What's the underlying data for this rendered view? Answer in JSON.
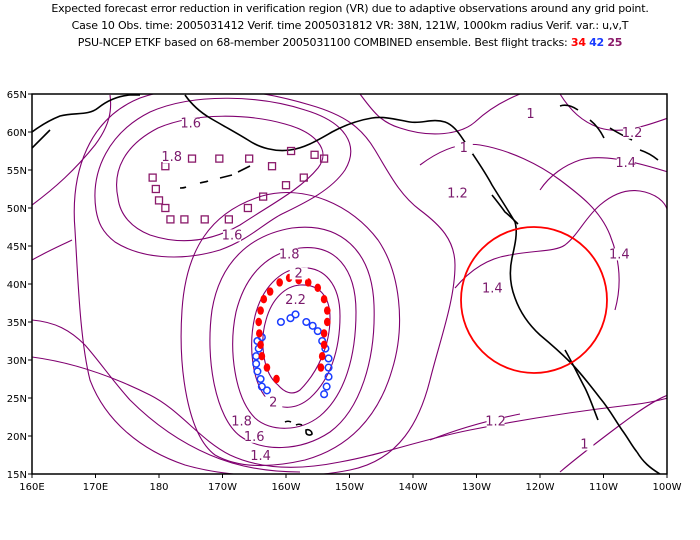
{
  "header": {
    "line1": "Expected forecast error reduction in verification region (VR) due to adaptive observations around any grid point.",
    "line2": "Case 10  Obs. time: 2005031412  Verif. time 2005031812  VR: 38N, 121W, 1000km radius  Verif. var.: u,v,T",
    "line3_prefix": "PSU-NCEP ETKF based on 68-member 2005031100 COMBINED ensemble.  Best flight tracks:",
    "track_red": "34",
    "track_blue": "42",
    "track_purple": "25"
  },
  "colors": {
    "contour": "#800070",
    "coast": "#000000",
    "red": "#ff0000",
    "blue": "#1a3cff",
    "purple": "#8a1a6a"
  },
  "axes": {
    "x_ticks": [
      "160E",
      "170E",
      "180",
      "170W",
      "160W",
      "150W",
      "140W",
      "130W",
      "120W",
      "110W",
      "100W"
    ],
    "y_ticks": [
      "15N",
      "20N",
      "25N",
      "30N",
      "35N",
      "40N",
      "45N",
      "50N",
      "55N",
      "60N",
      "65N"
    ],
    "lon_range": [
      160,
      260
    ],
    "lat_range": [
      15,
      65
    ]
  },
  "contour_labels": [
    {
      "text": "1.6",
      "lon": -175,
      "lat": 60.7
    },
    {
      "text": "1.6",
      "lon": -168.5,
      "lat": 46
    },
    {
      "text": "1.8",
      "lon": -159.5,
      "lat": 43.5
    },
    {
      "text": "2",
      "lon": -158,
      "lat": 41
    },
    {
      "text": "2.2",
      "lon": -158.5,
      "lat": 37.5
    },
    {
      "text": "2",
      "lon": -162,
      "lat": 24
    },
    {
      "text": "1.8",
      "lon": -167,
      "lat": 21.5
    },
    {
      "text": "1.6",
      "lon": -165,
      "lat": 19.5
    },
    {
      "text": "1.4",
      "lon": -164,
      "lat": 17
    },
    {
      "text": "1.2",
      "lon": -133,
      "lat": 51.5
    },
    {
      "text": "1.4",
      "lon": -127.5,
      "lat": 39
    },
    {
      "text": "1.2",
      "lon": -127,
      "lat": 21.5
    },
    {
      "text": "1",
      "lon": -132,
      "lat": 57.5
    },
    {
      "text": "1",
      "lon": -121.5,
      "lat": 62
    },
    {
      "text": "1.2",
      "lon": -105.5,
      "lat": 59.5
    },
    {
      "text": "1.4",
      "lon": -106.5,
      "lat": 55.5
    },
    {
      "text": "1.4",
      "lon": -107.5,
      "lat": 43.5
    },
    {
      "text": "1",
      "lon": -113,
      "lat": 18.5
    },
    {
      "text": "1.8",
      "lon": -178,
      "lat": 56.3
    }
  ],
  "verification_region": {
    "center_lon": -121,
    "center_lat": 38,
    "radius_km": 1000
  },
  "tracks": {
    "red": [
      [
        -162.5,
        39
      ],
      [
        -161,
        40.2
      ],
      [
        -159.5,
        40.8
      ],
      [
        -158,
        40.5
      ],
      [
        -156.5,
        40.2
      ],
      [
        -155,
        39.5
      ],
      [
        -154,
        38
      ],
      [
        -153.5,
        36.5
      ],
      [
        -153.5,
        35
      ],
      [
        -154,
        33.5
      ],
      [
        -154,
        32
      ],
      [
        -154.3,
        30.5
      ],
      [
        -154.5,
        29
      ],
      [
        -163.5,
        38
      ],
      [
        -164,
        36.5
      ],
      [
        -164.3,
        35
      ],
      [
        -164.2,
        33.5
      ],
      [
        -164,
        32
      ],
      [
        -163.8,
        30.5
      ],
      [
        -163,
        29
      ],
      [
        -161.5,
        27.5
      ]
    ],
    "blue": [
      [
        -160.8,
        35
      ],
      [
        -159.3,
        35.5
      ],
      [
        -158.5,
        36
      ],
      [
        -156.8,
        35
      ],
      [
        -155.8,
        34.5
      ],
      [
        -155,
        33.8
      ],
      [
        -154.3,
        32.5
      ],
      [
        -153.8,
        31.5
      ],
      [
        -153.3,
        30.2
      ],
      [
        -153.3,
        29
      ],
      [
        -153.3,
        27.8
      ],
      [
        -153.6,
        26.5
      ],
      [
        -154,
        25.5
      ],
      [
        -163.8,
        33
      ],
      [
        -164.5,
        32.5
      ],
      [
        -164.3,
        31.5
      ],
      [
        -164.7,
        30.5
      ],
      [
        -164.7,
        29.5
      ],
      [
        -164.5,
        28.5
      ],
      [
        -164,
        27.5
      ],
      [
        -163.8,
        26.5
      ],
      [
        -163,
        26
      ]
    ]
  },
  "purple_track": [
    [
      -179,
      55.5
    ],
    [
      -178,
      56.5
    ],
    [
      -174.8,
      56.5
    ],
    [
      -170.5,
      56.5
    ],
    [
      -165.8,
      56.5
    ],
    [
      -162.2,
      55.5
    ],
    [
      -159.2,
      57.5
    ],
    [
      -155.5,
      57
    ],
    [
      -154,
      56.5
    ],
    [
      -157.2,
      54
    ],
    [
      -160,
      53
    ],
    [
      -163.6,
      51.5
    ],
    [
      -166,
      50
    ],
    [
      -169,
      48.5
    ],
    [
      -172.8,
      48.5
    ],
    [
      -176,
      48.5
    ],
    [
      -178.2,
      48.5
    ],
    [
      -179,
      50
    ],
    [
      -180,
      51
    ],
    [
      -180.5,
      52.5
    ],
    [
      -181,
      54
    ]
  ]
}
